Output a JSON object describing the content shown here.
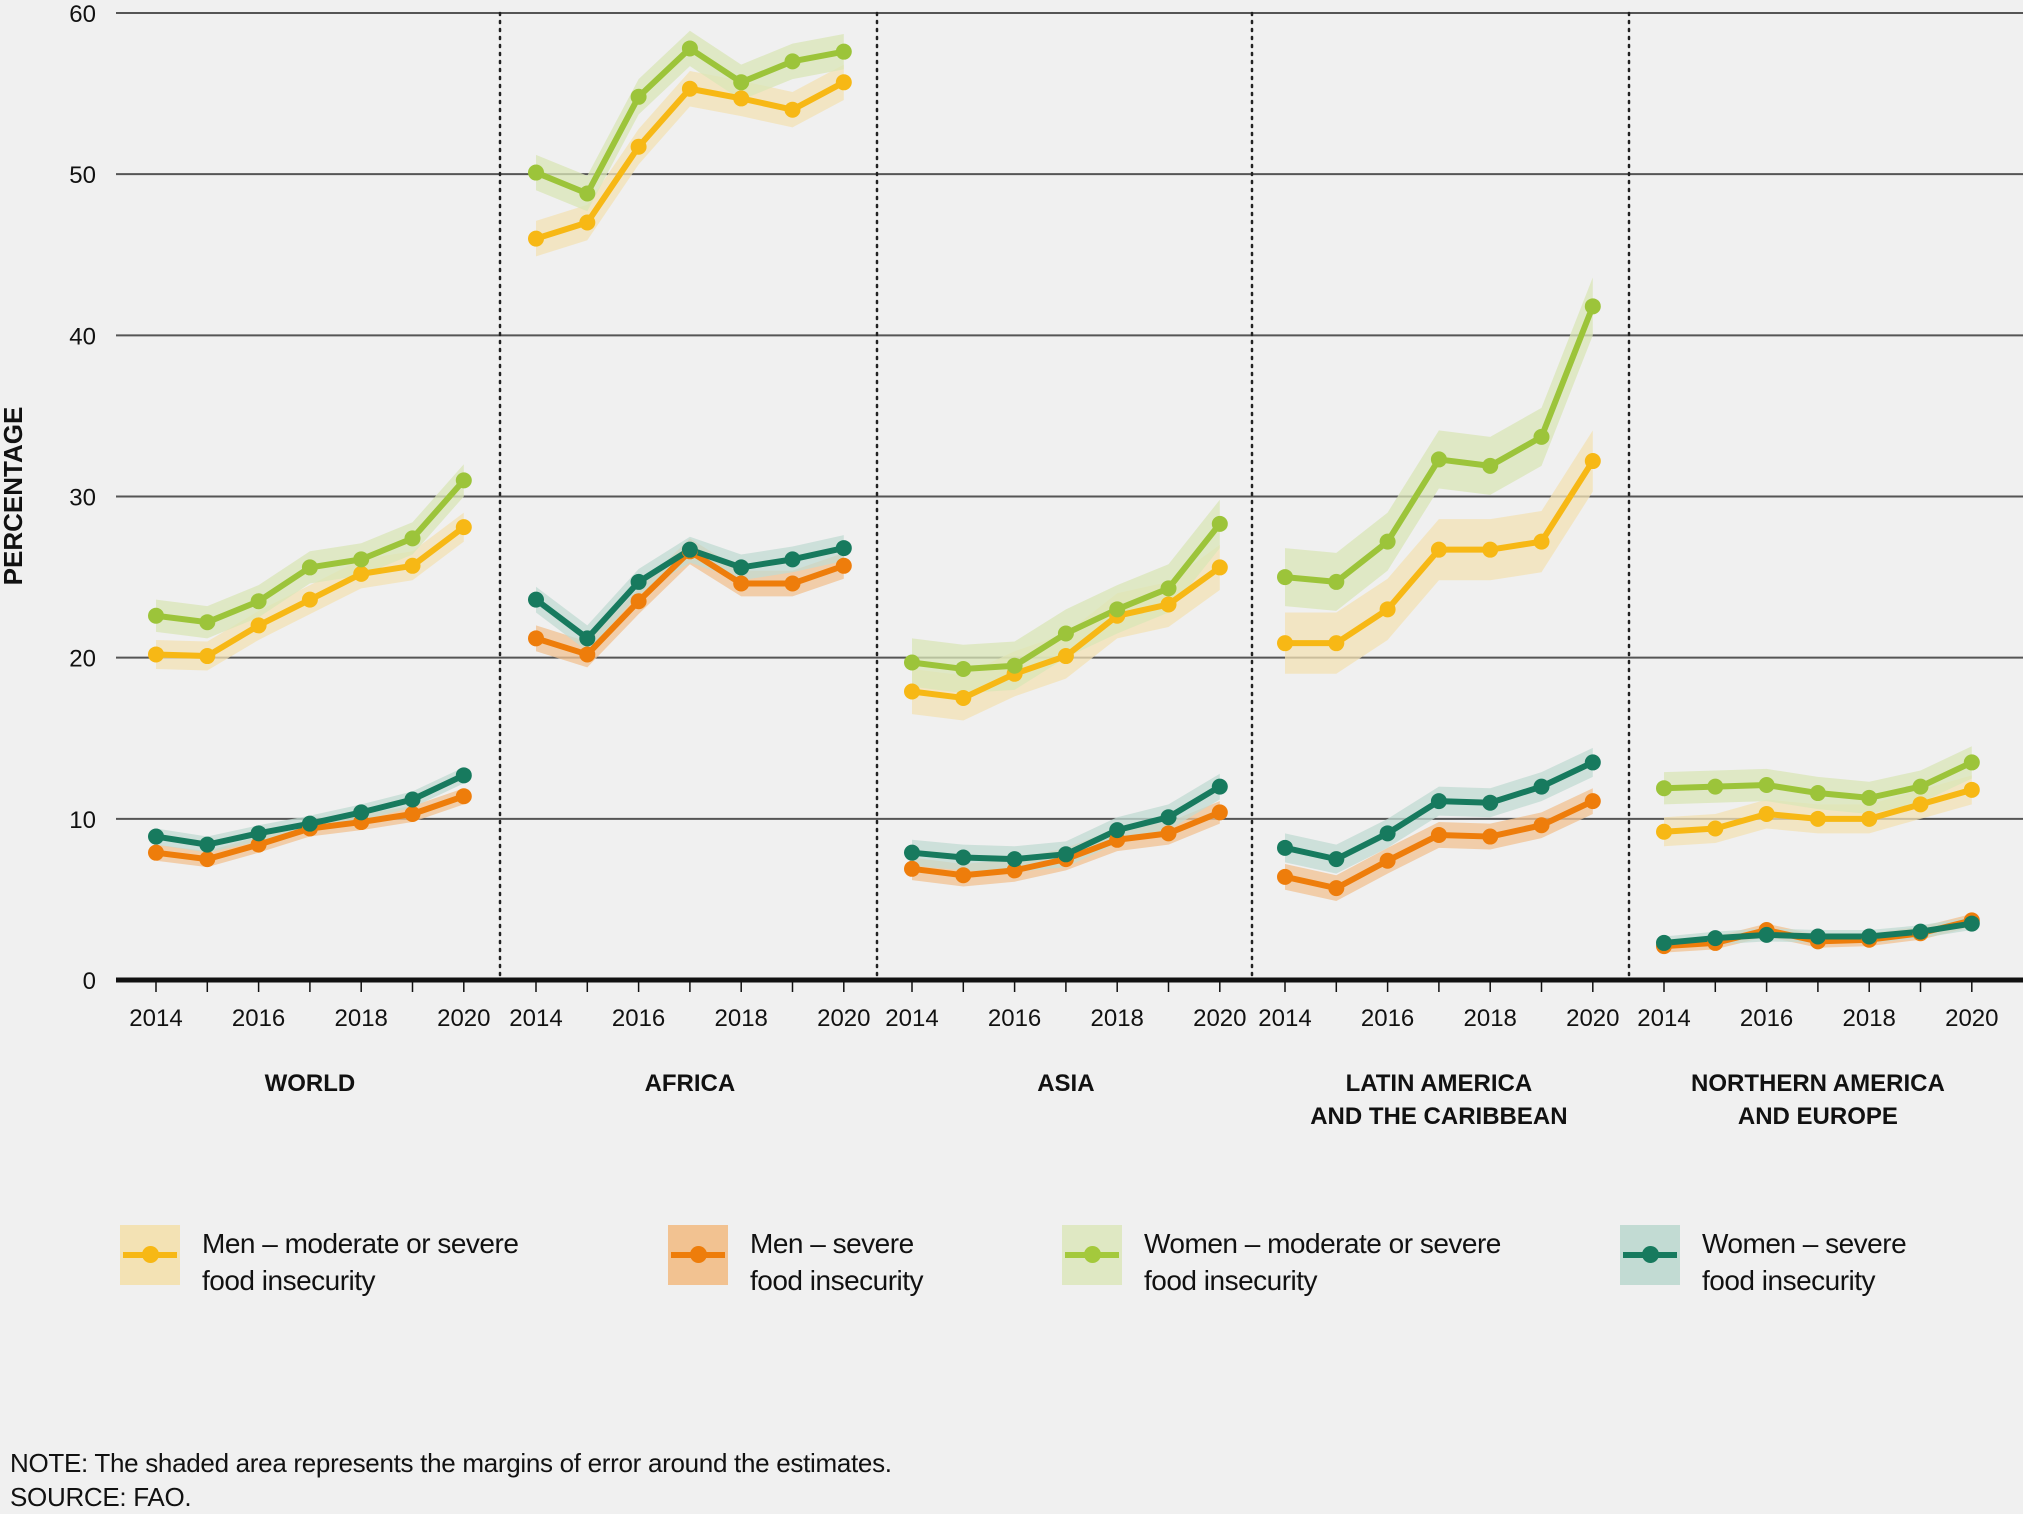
{
  "chart_data": {
    "type": "line",
    "title": "",
    "ylabel": "PERCENTAGE",
    "xlabel": "",
    "ylim": [
      0,
      60
    ],
    "yticks": [
      0,
      10,
      20,
      30,
      40,
      50,
      60
    ],
    "grid": true,
    "x": [
      2014,
      2015,
      2016,
      2017,
      2018,
      2019,
      2020
    ],
    "xtick_labels": [
      "2014",
      "2016",
      "2018",
      "2020"
    ],
    "legend_position": "bottom",
    "series_styles": [
      {
        "key": "men_mod",
        "name": "Men – moderate or severe food insecurity",
        "line1": "Men – moderate or severe",
        "line2": "food insecurity",
        "color": "#f7b815",
        "band": "#f3e2b4"
      },
      {
        "key": "men_sev",
        "name": "Men – severe food insecurity",
        "line1": "Men – severe",
        "line2": "food insecurity",
        "color": "#ee7d0b",
        "band": "#f2c291"
      },
      {
        "key": "women_mod",
        "name": "Women – moderate or severe food insecurity",
        "line1": "Women – moderate or severe",
        "line2": "food insecurity",
        "color": "#9cc43a",
        "band": "#d9e6b7"
      },
      {
        "key": "women_sev",
        "name": "Women – severe food insecurity",
        "line1": "Women – severe",
        "line2": "food insecurity",
        "color": "#177a5e",
        "band": "#c2dbd3"
      }
    ],
    "panels": [
      {
        "region": "WORLD",
        "region_line2": "",
        "series": {
          "women_mod": {
            "values": [
              22.6,
              22.2,
              23.5,
              25.6,
              26.1,
              27.4,
              31.0
            ],
            "margin": 1.0
          },
          "men_mod": {
            "values": [
              20.2,
              20.1,
              22.0,
              23.6,
              25.2,
              25.7,
              28.1
            ],
            "margin": 0.9
          },
          "women_sev": {
            "values": [
              8.9,
              8.4,
              9.1,
              9.7,
              10.4,
              11.2,
              12.7
            ],
            "margin": 0.5
          },
          "men_sev": {
            "values": [
              7.9,
              7.5,
              8.4,
              9.4,
              9.8,
              10.3,
              11.4
            ],
            "margin": 0.5
          }
        }
      },
      {
        "region": "AFRICA",
        "region_line2": "",
        "series": {
          "women_mod": {
            "values": [
              50.1,
              48.8,
              54.8,
              57.8,
              55.7,
              57.0,
              57.6
            ],
            "margin": 1.1
          },
          "men_mod": {
            "values": [
              46.0,
              47.0,
              51.7,
              55.3,
              54.7,
              54.0,
              55.7
            ],
            "margin": 1.1
          },
          "women_sev": {
            "values": [
              23.6,
              21.2,
              24.7,
              26.7,
              25.6,
              26.1,
              26.8
            ],
            "margin": 0.8
          },
          "men_sev": {
            "values": [
              21.2,
              20.2,
              23.5,
              26.6,
              24.6,
              24.6,
              25.7
            ],
            "margin": 0.8
          }
        }
      },
      {
        "region": "ASIA",
        "region_line2": "",
        "series": {
          "women_mod": {
            "values": [
              19.7,
              19.3,
              19.5,
              21.5,
              23.0,
              24.3,
              28.3
            ],
            "margin": 1.5
          },
          "men_mod": {
            "values": [
              17.9,
              17.5,
              19.0,
              20.1,
              22.6,
              23.3,
              25.6
            ],
            "margin": 1.4
          },
          "women_sev": {
            "values": [
              7.9,
              7.6,
              7.5,
              7.8,
              9.3,
              10.1,
              12.0
            ],
            "margin": 0.8
          },
          "men_sev": {
            "values": [
              6.9,
              6.5,
              6.8,
              7.5,
              8.7,
              9.1,
              10.4
            ],
            "margin": 0.7
          }
        }
      },
      {
        "region": "LATIN AMERICA",
        "region_line2": "AND THE CARIBBEAN",
        "series": {
          "women_mod": {
            "values": [
              25.0,
              24.7,
              27.2,
              32.3,
              31.9,
              33.7,
              41.8
            ],
            "margin": 1.8
          },
          "men_mod": {
            "values": [
              20.9,
              20.9,
              23.0,
              26.7,
              26.7,
              27.2,
              32.2
            ],
            "margin": 1.9
          },
          "women_sev": {
            "values": [
              8.2,
              7.5,
              9.1,
              11.1,
              11.0,
              12.0,
              13.5
            ],
            "margin": 0.9
          },
          "men_sev": {
            "values": [
              6.4,
              5.7,
              7.4,
              9.0,
              8.9,
              9.6,
              11.1
            ],
            "margin": 0.8
          }
        }
      },
      {
        "region": "NORTHERN AMERICA",
        "region_line2": "AND EUROPE",
        "series": {
          "women_mod": {
            "values": [
              11.9,
              12.0,
              12.1,
              11.6,
              11.3,
              12.0,
              13.5
            ],
            "margin": 1.0
          },
          "men_mod": {
            "values": [
              9.2,
              9.4,
              10.3,
              10.0,
              10.0,
              10.9,
              11.8
            ],
            "margin": 0.9
          },
          "women_sev": {
            "values": [
              2.3,
              2.6,
              2.8,
              2.7,
              2.7,
              3.0,
              3.5
            ],
            "margin": 0.4
          },
          "men_sev": {
            "values": [
              2.1,
              2.3,
              3.1,
              2.4,
              2.5,
              2.9,
              3.7
            ],
            "margin": 0.4
          }
        }
      }
    ]
  },
  "legend": [
    {
      "line1": "Men – moderate or severe",
      "line2": "food insecurity"
    },
    {
      "line1": "Men – severe",
      "line2": "food insecurity"
    },
    {
      "line1": "Women – moderate or severe",
      "line2": "food insecurity"
    },
    {
      "line1": "Women – severe",
      "line2": "food insecurity"
    }
  ],
  "notes": {
    "note": "NOTE: The shaded area represents the margins of error around the estimates.",
    "source": "SOURCE: FAO."
  }
}
